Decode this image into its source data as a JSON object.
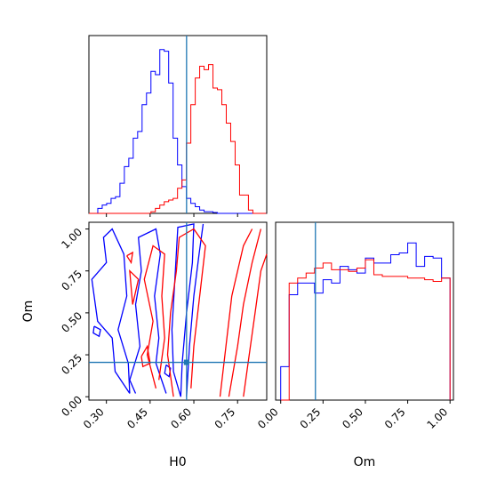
{
  "chart_data": [
    {
      "type": "histogram",
      "panel": "H0 marginal",
      "x_range": [
        0.24,
        0.85
      ],
      "bins_start": 0.24,
      "bin_width": 0.0152,
      "series": [
        {
          "color": "#0000ff",
          "counts": [
            0,
            0,
            0.03,
            0.05,
            0.06,
            0.09,
            0.1,
            0.18,
            0.28,
            0.33,
            0.45,
            0.49,
            0.65,
            0.72,
            0.85,
            0.83,
            0.98,
            0.97,
            0.78,
            0.45,
            0.29,
            0.16,
            0.09,
            0.06,
            0.04,
            0.02,
            0.01,
            0.01,
            0.005,
            0,
            0,
            0,
            0,
            0,
            0,
            0,
            0,
            0,
            0,
            0
          ]
        },
        {
          "color": "#ff0000",
          "counts": [
            0,
            0,
            0,
            0,
            0,
            0,
            0,
            0,
            0,
            0,
            0,
            0,
            0,
            0,
            0.01,
            0.03,
            0.05,
            0.07,
            0.08,
            0.09,
            0.15,
            0.2,
            0.42,
            0.65,
            0.81,
            0.88,
            0.86,
            0.89,
            0.75,
            0.74,
            0.65,
            0.54,
            0.43,
            0.29,
            0.11,
            0.11,
            0.02,
            0,
            0,
            0
          ]
        }
      ],
      "truth_line": {
        "x": 0.575,
        "color": "#1f77b4"
      }
    },
    {
      "type": "contour",
      "panel": "H0 vs Om",
      "xlabel": "H0",
      "ylabel": "Om",
      "x_range": [
        0.24,
        0.85
      ],
      "y_range": [
        -0.02,
        1.04
      ],
      "xticks": [
        "0.30",
        "0.45",
        "0.60",
        "0.75"
      ],
      "yticks": [
        "0.00",
        "0.25",
        "0.50",
        "0.75",
        "1.00"
      ],
      "truth_point": {
        "x": 0.575,
        "y": 0.205
      },
      "series": [
        {
          "color": "#0000ff",
          "contours": [
            [
              [
                0.575,
                0.0
              ],
              [
                0.585,
                0.3
              ],
              [
                0.6,
                0.6
              ],
              [
                0.618,
                0.85
              ],
              [
                0.632,
                1.03
              ]
            ],
            [
              [
                0.555,
                0.0
              ],
              [
                0.53,
                0.15
              ],
              [
                0.525,
                0.4
              ],
              [
                0.535,
                0.7
              ],
              [
                0.545,
                1.01
              ],
              [
                0.6,
                1.03
              ],
              [
                0.595,
                0.8
              ],
              [
                0.575,
                0.5
              ],
              [
                0.56,
                0.2
              ],
              [
                0.555,
                0.0
              ]
            ],
            [
              [
                0.505,
                0.02
              ],
              [
                0.47,
                0.2
              ],
              [
                0.48,
                0.35
              ],
              [
                0.465,
                0.6
              ],
              [
                0.485,
                0.85
              ],
              [
                0.47,
                1.0
              ],
              [
                0.41,
                0.95
              ],
              [
                0.42,
                0.75
              ],
              [
                0.4,
                0.55
              ],
              [
                0.415,
                0.3
              ],
              [
                0.38,
                0.1
              ],
              [
                0.4,
                0.02
              ]
            ],
            [
              [
                0.38,
                0.02
              ],
              [
                0.33,
                0.15
              ],
              [
                0.32,
                0.35
              ],
              [
                0.27,
                0.45
              ],
              [
                0.25,
                0.7
              ],
              [
                0.3,
                0.8
              ],
              [
                0.29,
                0.95
              ],
              [
                0.32,
                1.0
              ],
              [
                0.36,
                0.85
              ],
              [
                0.37,
                0.6
              ],
              [
                0.34,
                0.4
              ],
              [
                0.375,
                0.2
              ],
              [
                0.38,
                0.02
              ]
            ],
            [
              [
                0.258,
                0.42
              ],
              [
                0.28,
                0.4
              ],
              [
                0.275,
                0.36
              ],
              [
                0.255,
                0.38
              ],
              [
                0.258,
                0.42
              ]
            ],
            [
              [
                0.505,
                0.19
              ],
              [
                0.52,
                0.17
              ],
              [
                0.515,
                0.12
              ],
              [
                0.5,
                0.14
              ],
              [
                0.505,
                0.19
              ]
            ]
          ]
        },
        {
          "color": "#ff0000",
          "contours": [
            [
              [
                0.69,
                0.0
              ],
              [
                0.71,
                0.3
              ],
              [
                0.73,
                0.6
              ],
              [
                0.77,
                0.9
              ],
              [
                0.8,
                1.0
              ]
            ],
            [
              [
                0.72,
                0.0
              ],
              [
                0.75,
                0.3
              ],
              [
                0.77,
                0.55
              ],
              [
                0.8,
                0.8
              ],
              [
                0.83,
                1.0
              ]
            ],
            [
              [
                0.77,
                0.0
              ],
              [
                0.79,
                0.25
              ],
              [
                0.81,
                0.5
              ],
              [
                0.83,
                0.75
              ],
              [
                0.85,
                0.85
              ]
            ],
            [
              [
                0.53,
                0.0
              ],
              [
                0.51,
                0.25
              ],
              [
                0.52,
                0.5
              ],
              [
                0.54,
                0.75
              ],
              [
                0.55,
                0.95
              ],
              [
                0.6,
                1.0
              ],
              [
                0.64,
                0.9
              ],
              [
                0.62,
                0.6
              ],
              [
                0.6,
                0.3
              ],
              [
                0.59,
                0.05
              ]
            ],
            [
              [
                0.47,
                0.05
              ],
              [
                0.44,
                0.25
              ],
              [
                0.46,
                0.45
              ],
              [
                0.43,
                0.7
              ],
              [
                0.46,
                0.9
              ],
              [
                0.5,
                0.85
              ],
              [
                0.49,
                0.6
              ],
              [
                0.5,
                0.35
              ],
              [
                0.48,
                0.1
              ]
            ],
            [
              [
                0.41,
                0.7
              ],
              [
                0.39,
                0.55
              ],
              [
                0.38,
                0.75
              ],
              [
                0.41,
                0.7
              ]
            ],
            [
              [
                0.42,
                0.24
              ],
              [
                0.44,
                0.3
              ],
              [
                0.45,
                0.2
              ],
              [
                0.425,
                0.18
              ],
              [
                0.42,
                0.24
              ]
            ],
            [
              [
                0.37,
                0.84
              ],
              [
                0.39,
                0.86
              ],
              [
                0.385,
                0.8
              ],
              [
                0.37,
                0.84
              ]
            ]
          ]
        }
      ]
    },
    {
      "type": "histogram",
      "panel": "Om marginal",
      "xlabel": "Om",
      "x_range": [
        -0.03,
        1.02
      ],
      "xticks": [
        "0.00",
        "0.25",
        "0.50",
        "0.75",
        "1.00"
      ],
      "bins_start": 0.0,
      "bin_width": 0.05,
      "series": [
        {
          "color": "#0000ff",
          "counts": [
            0.2,
            0.63,
            0.7,
            0.7,
            0.64,
            0.72,
            0.7,
            0.8,
            0.78,
            0.76,
            0.85,
            0.82,
            0.82,
            0.87,
            0.88,
            0.94,
            0.8,
            0.86,
            0.85,
            0.73
          ]
        },
        {
          "color": "#ff0000",
          "counts": [
            0,
            0.7,
            0.73,
            0.76,
            0.79,
            0.82,
            0.78,
            0.78,
            0.77,
            0.79,
            0.84,
            0.75,
            0.74,
            0.74,
            0.74,
            0.73,
            0.73,
            0.72,
            0.71,
            0.73
          ]
        }
      ],
      "truth_line": {
        "x": 0.205,
        "color": "#1f77b4"
      }
    }
  ]
}
